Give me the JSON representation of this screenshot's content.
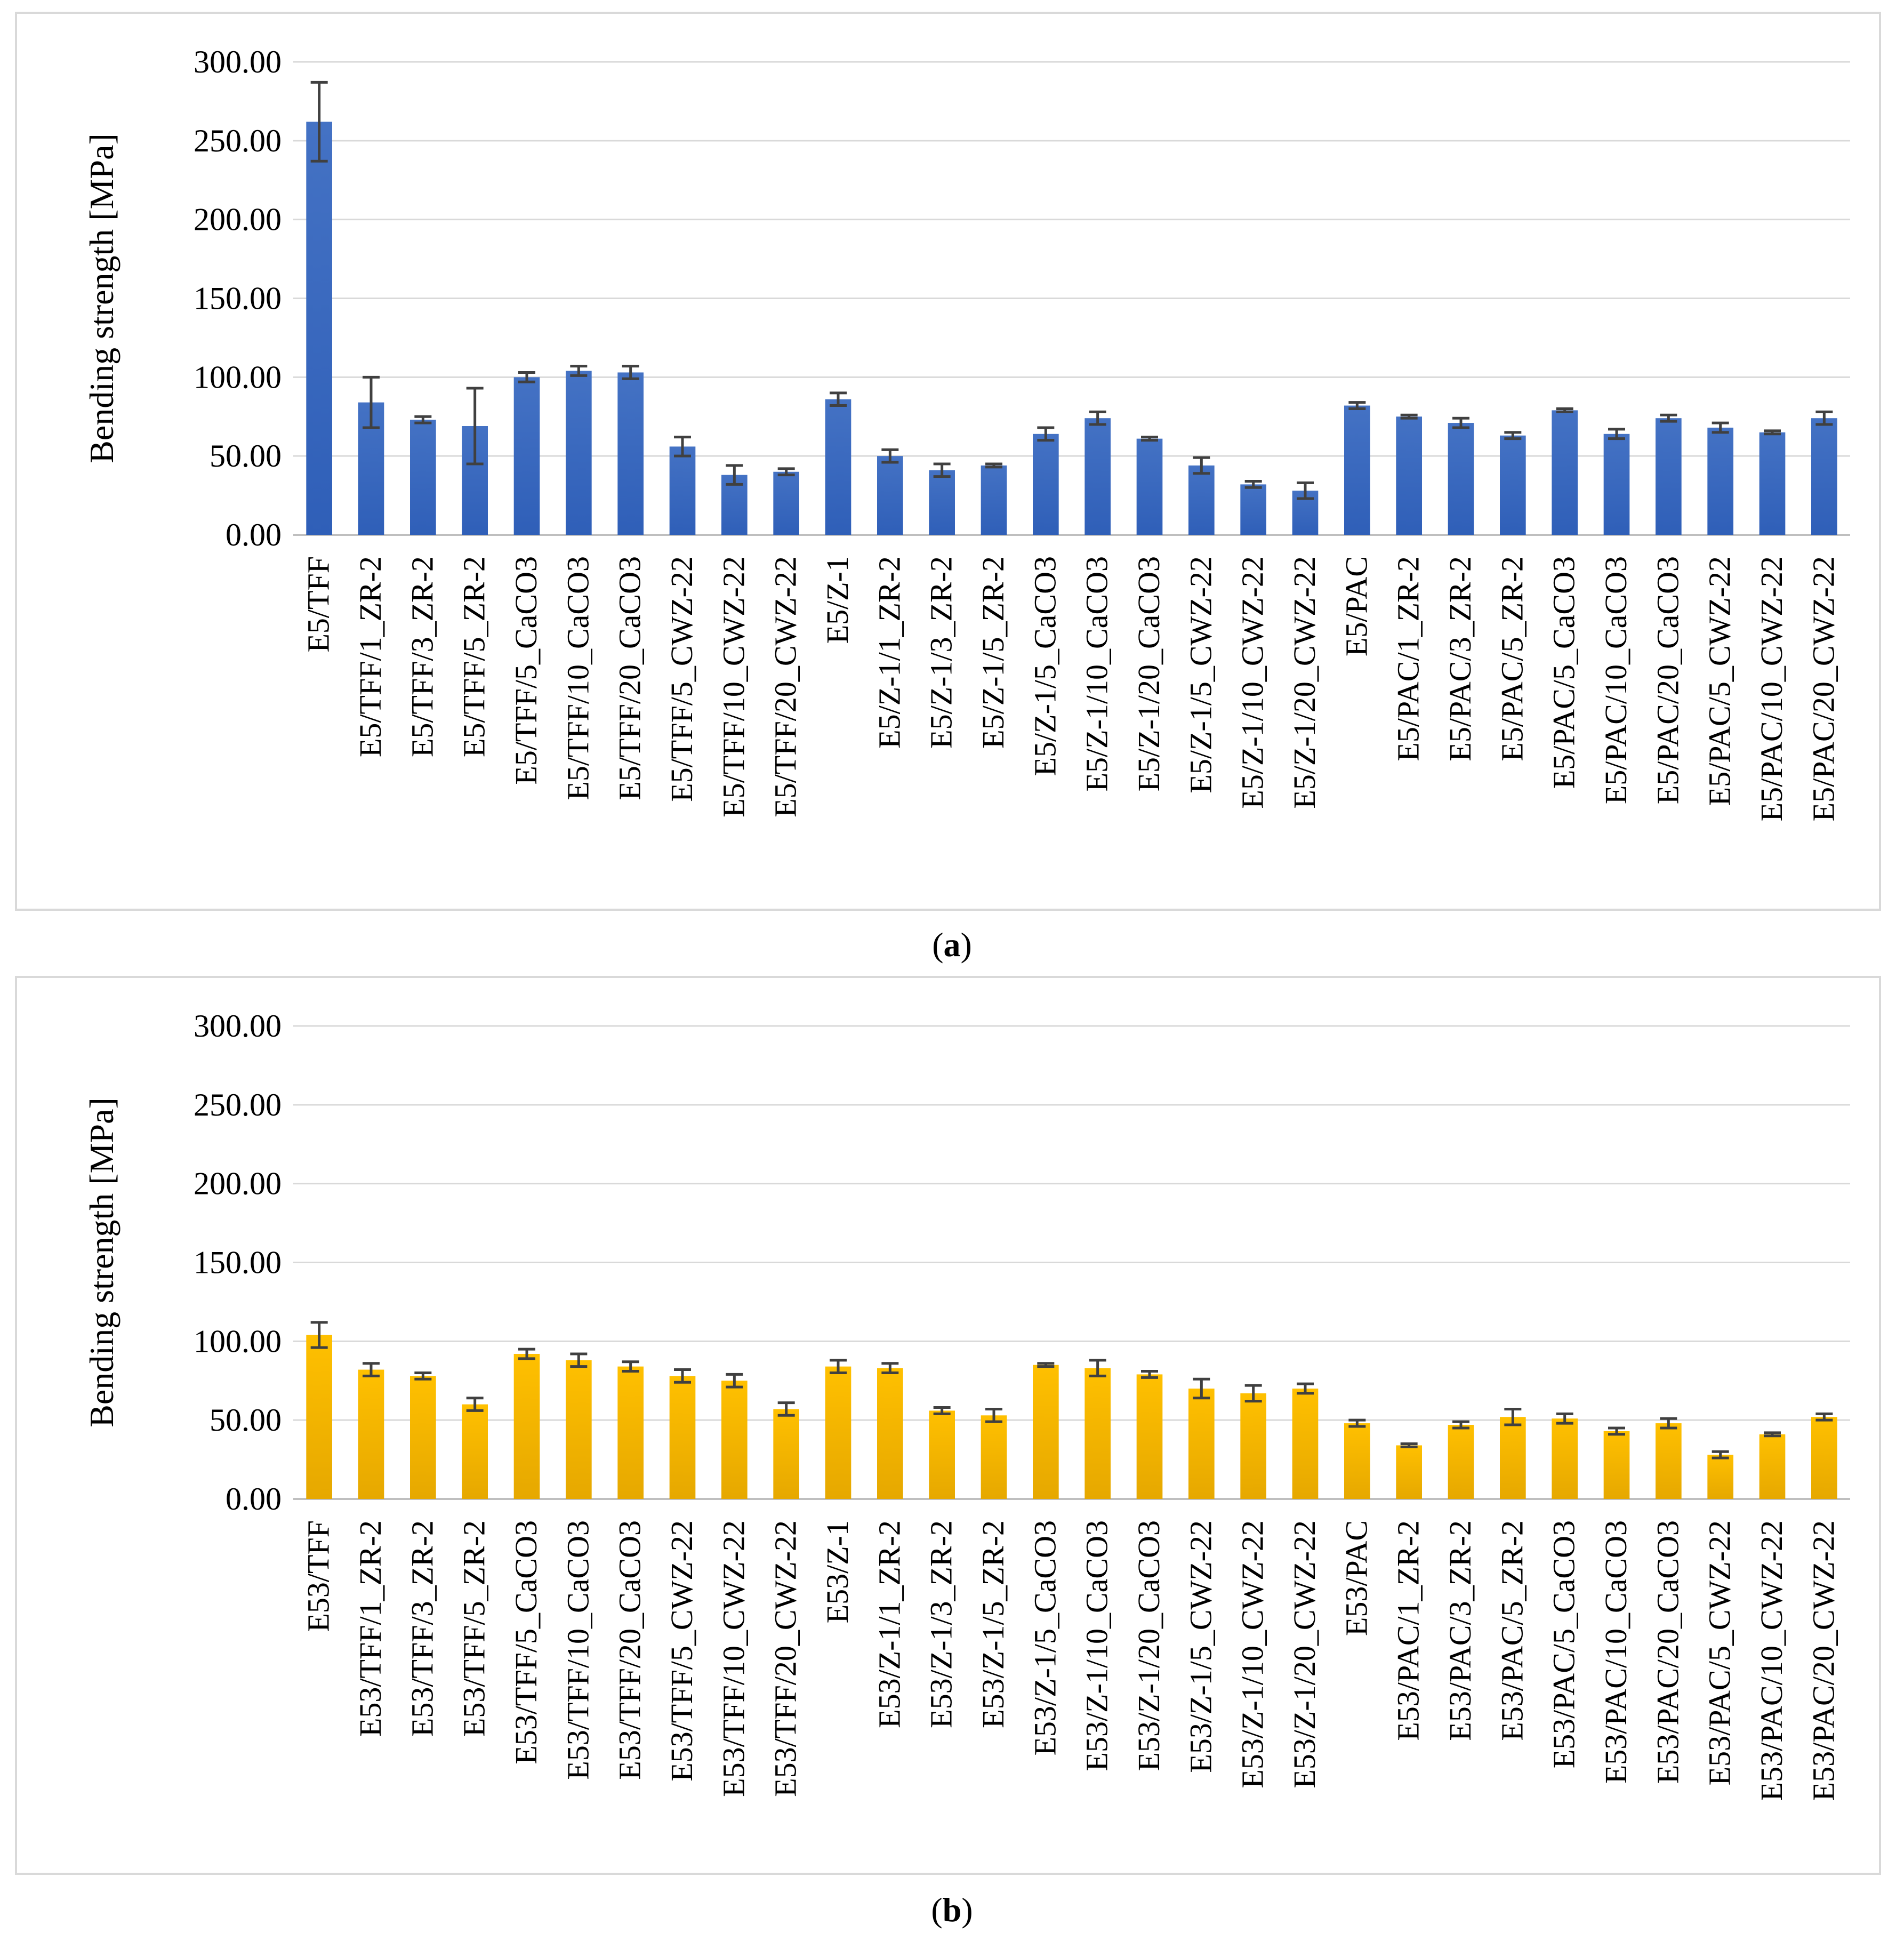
{
  "chart_data": [
    {
      "type": "bar",
      "panel": "a",
      "caption_prefix": "(",
      "caption_letter": "a",
      "caption_suffix": ")",
      "ylabel": "Bending strength [MPa]",
      "xlabel": "",
      "ylim": [
        0,
        300
      ],
      "yticks": [
        "0.00",
        "50.00",
        "100.00",
        "150.00",
        "200.00",
        "250.00",
        "300.00"
      ],
      "grid": true,
      "color": "#4472c4",
      "colorDark": "#2f5fb8",
      "errorColor": "#404040",
      "categories": [
        "E5/TFF",
        "E5/TFF/1_ZR-2",
        "E5/TFF/3_ZR-2",
        "E5/TFF/5_ZR-2",
        "E5/TFF/5_CaCO3",
        "E5/TFF/10_CaCO3",
        "E5/TFF/20_CaCO3",
        "E5/TFF/5_CWZ-22",
        "E5/TFF/10_CWZ-22",
        "E5/TFF/20_CWZ-22",
        "E5/Z-1",
        "E5/Z-1/1_ZR-2",
        "E5/Z-1/3_ZR-2",
        "E5/Z-1/5_ZR-2",
        "E5/Z-1/5_CaCO3",
        "E5/Z-1/10_CaCO3",
        "E5/Z-1/20_CaCO3",
        "E5/Z-1/5_CWZ-22",
        "E5/Z-1/10_CWZ-22",
        "E5/Z-1/20_CWZ-22",
        "E5/PAC",
        "E5/PAC/1_ZR-2",
        "E5/PAC/3_ZR-2",
        "E5/PAC/5_ZR-2",
        "E5/PAC/5_CaCO3",
        "E5/PAC/10_CaCO3",
        "E5/PAC/20_CaCO3",
        "E5/PAC/5_CWZ-22",
        "E5/PAC/10_CWZ-22",
        "E5/PAC/20_CWZ-22"
      ],
      "values": [
        262,
        84,
        73,
        69,
        100,
        104,
        103,
        56,
        38,
        40,
        86,
        50,
        41,
        44,
        64,
        74,
        61,
        44,
        32,
        28,
        82,
        75,
        71,
        63,
        79,
        64,
        74,
        68,
        65,
        74
      ],
      "errors": [
        25,
        16,
        2,
        24,
        3,
        3,
        4,
        6,
        6,
        2,
        4,
        4,
        4,
        1,
        4,
        4,
        1,
        5,
        2,
        5,
        2,
        1,
        3,
        2,
        1,
        3,
        2,
        3,
        1,
        4
      ]
    },
    {
      "type": "bar",
      "panel": "b",
      "caption_prefix": "(",
      "caption_letter": "b",
      "caption_suffix": ")",
      "ylabel": "Bending strength [MPa]",
      "xlabel": "",
      "ylim": [
        0,
        300
      ],
      "yticks": [
        "0.00",
        "50.00",
        "100.00",
        "150.00",
        "200.00",
        "250.00",
        "300.00"
      ],
      "grid": true,
      "color": "#ffc000",
      "colorDark": "#e6a800",
      "errorColor": "#404040",
      "categories": [
        "E53/TFF",
        "E53/TFF/1_ZR-2",
        "E53/TFF/3_ZR-2",
        "E53/TFF/5_ZR-2",
        "E53/TFF/5_CaCO3",
        "E53/TFF/10_CaCO3",
        "E53/TFF/20_CaCO3",
        "E53/TFF/5_CWZ-22",
        "E53/TFF/10_CWZ-22",
        "E53/TFF/20_CWZ-22",
        "E53/Z-1",
        "E53/Z-1/1_ZR-2",
        "E53/Z-1/3_ZR-2",
        "E53/Z-1/5_ZR-2",
        "E53/Z-1/5_CaCO3",
        "E53/Z-1/10_CaCO3",
        "E53/Z-1/20_CaCO3",
        "E53/Z-1/5_CWZ-22",
        "E53/Z-1/10_CWZ-22",
        "E53/Z-1/20_CWZ-22",
        "E53/PAC",
        "E53/PAC/1_ZR-2",
        "E53/PAC/3_ZR-2",
        "E53/PAC/5_ZR-2",
        "E53/PAC/5_CaCO3",
        "E53/PAC/10_CaCO3",
        "E53/PAC/20_CaCO3",
        "E53/PAC/5_CWZ-22",
        "E53/PAC/10_CWZ-22",
        "E53/PAC/20_CWZ-22"
      ],
      "values": [
        104,
        82,
        78,
        60,
        92,
        88,
        84,
        78,
        75,
        57,
        84,
        83,
        56,
        53,
        85,
        83,
        79,
        70,
        67,
        70,
        48,
        34,
        47,
        52,
        51,
        43,
        48,
        28,
        41,
        52
      ],
      "errors": [
        8,
        4,
        2,
        4,
        3,
        4,
        3,
        4,
        4,
        4,
        4,
        3,
        2,
        4,
        1,
        5,
        2,
        6,
        5,
        3,
        2,
        1,
        2,
        5,
        3,
        2,
        3,
        2,
        1,
        2
      ]
    }
  ]
}
